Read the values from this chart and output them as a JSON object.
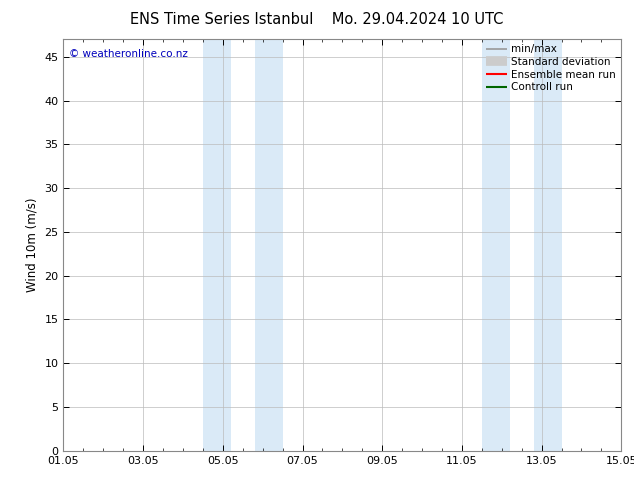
{
  "title_left": "ENS Time Series Istanbul",
  "title_right": "Mo. 29.04.2024 10 UTC",
  "ylabel": "Wind 10m (m/s)",
  "ylim": [
    0,
    47
  ],
  "yticks": [
    0,
    5,
    10,
    15,
    20,
    25,
    30,
    35,
    40,
    45
  ],
  "xlim": [
    0,
    14
  ],
  "x_tick_labels": [
    "01.05",
    "03.05",
    "05.05",
    "07.05",
    "09.05",
    "11.05",
    "13.05",
    "15.05"
  ],
  "x_tick_positions": [
    0,
    2,
    4,
    6,
    8,
    10,
    12,
    14
  ],
  "x_minor_tick_positions": [
    0,
    0.5,
    1,
    1.5,
    2,
    2.5,
    3,
    3.5,
    4,
    4.5,
    5,
    5.5,
    6,
    6.5,
    7,
    7.5,
    8,
    8.5,
    9,
    9.5,
    10,
    10.5,
    11,
    11.5,
    12,
    12.5,
    13,
    13.5,
    14
  ],
  "shaded_bands": [
    {
      "x_start": 3.5,
      "x_end": 4.2,
      "color": "#daeaf7"
    },
    {
      "x_start": 4.8,
      "x_end": 5.5,
      "color": "#daeaf7"
    },
    {
      "x_start": 10.5,
      "x_end": 11.2,
      "color": "#daeaf7"
    },
    {
      "x_start": 11.8,
      "x_end": 12.5,
      "color": "#daeaf7"
    }
  ],
  "legend_items": [
    {
      "label": "min/max",
      "color": "#999999",
      "lw": 1.2
    },
    {
      "label": "Standard deviation",
      "color": "#cccccc",
      "lw": 7
    },
    {
      "label": "Ensemble mean run",
      "color": "#ff0000",
      "lw": 1.5
    },
    {
      "label": "Controll run",
      "color": "#006600",
      "lw": 1.5
    }
  ],
  "watermark": "© weatheronline.co.nz",
  "watermark_color": "#0000bb",
  "watermark_fontsize": 7.5,
  "title_fontsize": 10.5,
  "ylabel_fontsize": 8.5,
  "tick_fontsize": 8,
  "legend_fontsize": 7.5,
  "bg_color": "#ffffff",
  "plot_bg_color": "#ffffff",
  "grid_color": "#bbbbbb",
  "spine_color": "#888888"
}
